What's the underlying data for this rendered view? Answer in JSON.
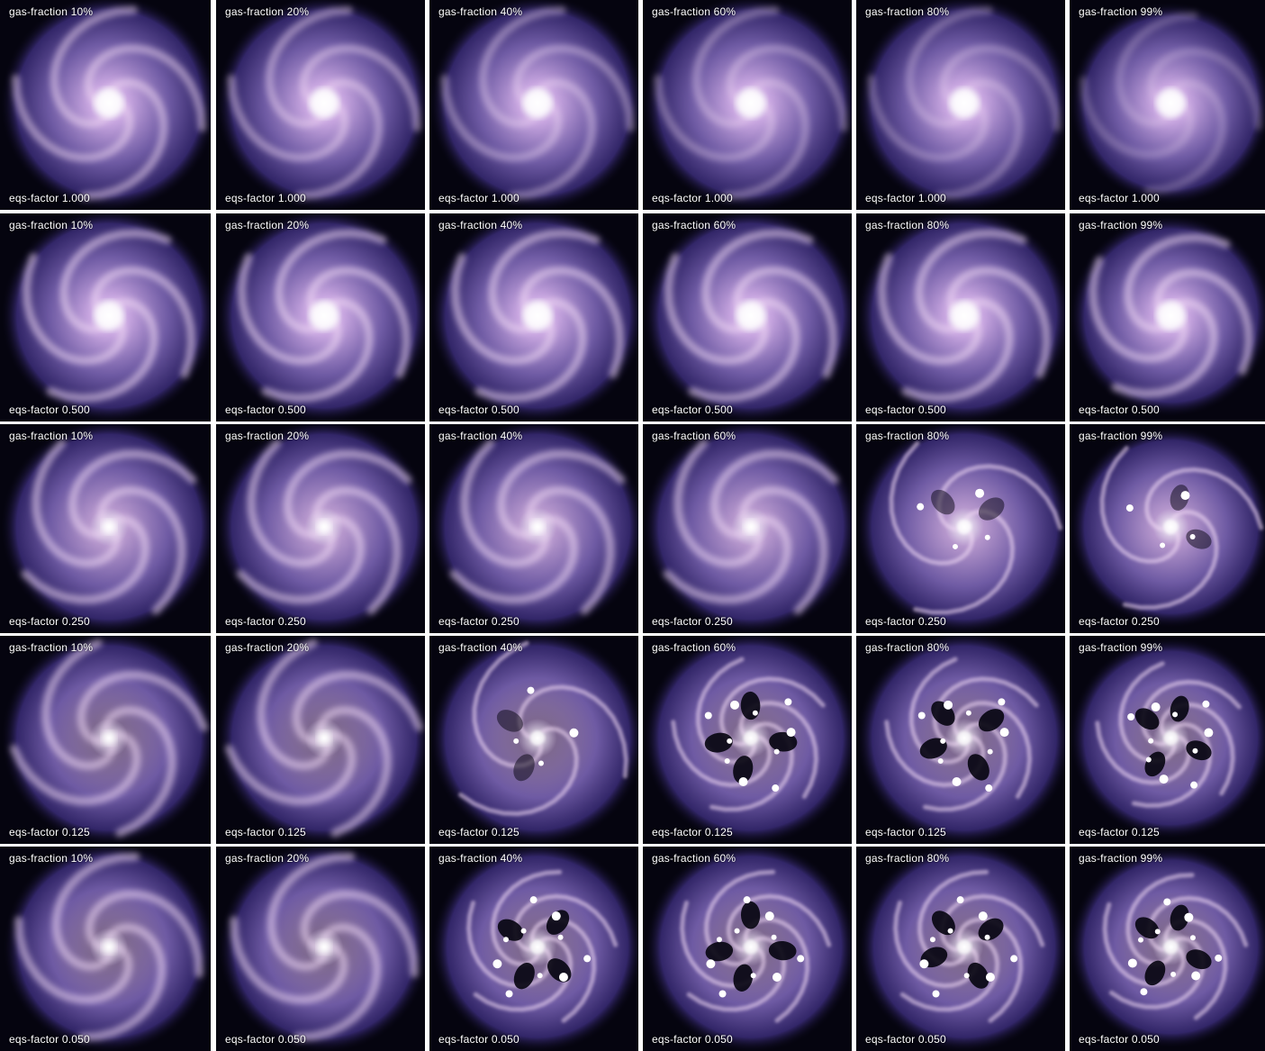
{
  "figure": {
    "columns": [
      "gas-fraction 10%",
      "gas-fraction 20%",
      "gas-fraction 40%",
      "gas-fraction 60%",
      "gas-fraction 80%",
      "gas-fraction 99%"
    ],
    "rows": [
      {
        "eqs_label": "eqs-factor 1.000",
        "gas_labels": [
          "gas-fraction 10%",
          "gas-fraction 20%",
          "gas-fraction 40%",
          "gas-fraction 60%",
          "gas-fraction 80%",
          "gas-fraction 99%"
        ],
        "panels": [
          "smooth-spiral",
          "smooth-spiral",
          "smooth-spiral",
          "smooth-spiral",
          "smooth-spiral",
          "smooth-spiral"
        ]
      },
      {
        "eqs_label": "eqs-factor 0.500",
        "gas_labels": [
          "gas-fraction 10%",
          "gas-fraction 20%",
          "gas-fraction 40%",
          "gas-fraction 60%",
          "gas-fraction 80%",
          "gas-fraction 99%"
        ],
        "panels": [
          "smooth-spiral",
          "smooth-spiral",
          "smooth-spiral",
          "smooth-spiral",
          "smooth-spiral",
          "smooth-spiral"
        ]
      },
      {
        "eqs_label": "eqs-factor 0.250",
        "gas_labels": [
          "gas-fraction 10%",
          "gas-fraction 20%",
          "gas-fraction 40%",
          "gas-fraction 60%",
          "gas-fraction 80%",
          "gas-fraction 99%"
        ],
        "panels": [
          "smooth-spiral",
          "smooth-spiral",
          "smooth-spiral",
          "smooth-spiral",
          "clumpy-spiral",
          "clumpy-spiral"
        ]
      },
      {
        "eqs_label": "eqs-factor 0.125",
        "gas_labels": [
          "gas-fraction 10%",
          "gas-fraction 20%",
          "gas-fraction 40%",
          "gas-fraction 60%",
          "gas-fraction 80%",
          "gas-fraction 99%"
        ],
        "panels": [
          "smooth-spiral",
          "smooth-spiral",
          "clumpy-spiral",
          "fragmented-ring",
          "fragmented-ring",
          "fragmented-ring"
        ]
      },
      {
        "eqs_label": "eqs-factor 0.050",
        "gas_labels": [
          "gas-fraction 10%",
          "gas-fraction 20%",
          "gas-fraction 40%",
          "gas-fraction 60%",
          "gas-fraction 80%",
          "gas-fraction 99%"
        ],
        "panels": [
          "smooth-spiral",
          "smooth-spiral",
          "fragmented-ring",
          "fragmented-ring",
          "fragmented-ring",
          "fragmented-ring"
        ]
      }
    ],
    "colors": {
      "background": "#05040f",
      "disk_outer": "#3a2c78",
      "disk_mid": "#7a64b4",
      "disk_inner": "#c8a6e0",
      "core": "#ffffff",
      "arm": "#f1d9f4",
      "separator": "#ffffff"
    }
  }
}
